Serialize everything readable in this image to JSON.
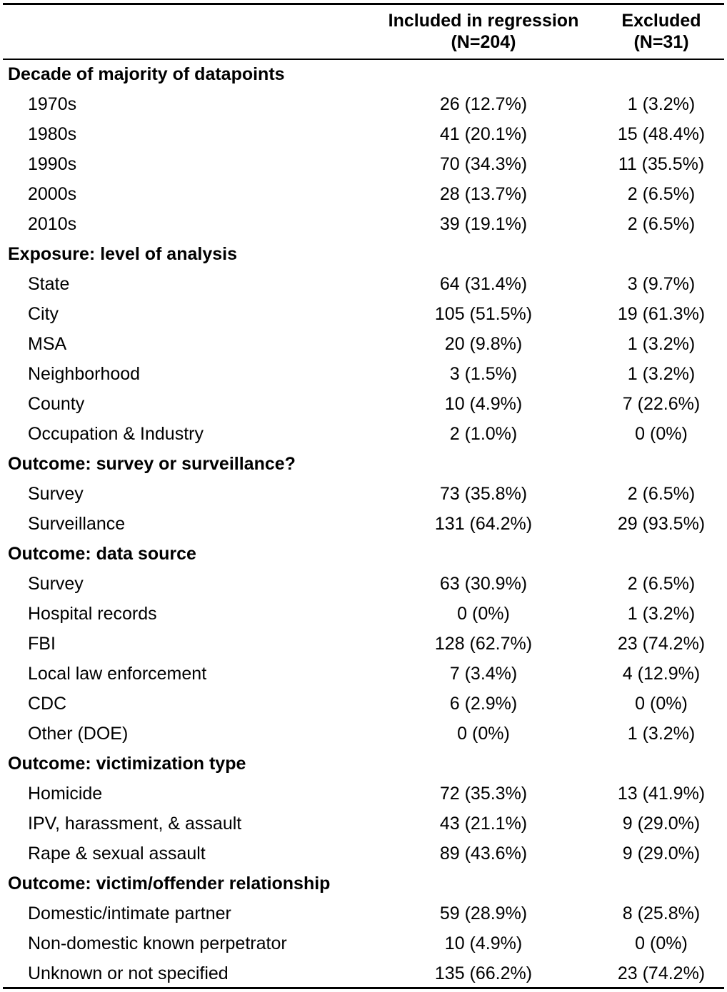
{
  "header": {
    "col1_line1": "Included in regression",
    "col1_line2": "(N=204)",
    "col2_line1": "Excluded",
    "col2_line2": "(N=31)"
  },
  "sections": [
    {
      "title": "Decade of majority of datapoints",
      "rows": [
        {
          "label": "1970s",
          "included": "26 (12.7%)",
          "excluded": "1 (3.2%)"
        },
        {
          "label": "1980s",
          "included": "41 (20.1%)",
          "excluded": "15 (48.4%)"
        },
        {
          "label": "1990s",
          "included": "70 (34.3%)",
          "excluded": "11 (35.5%)"
        },
        {
          "label": "2000s",
          "included": "28 (13.7%)",
          "excluded": "2 (6.5%)"
        },
        {
          "label": "2010s",
          "included": "39 (19.1%)",
          "excluded": "2 (6.5%)"
        }
      ]
    },
    {
      "title": "Exposure: level of analysis",
      "rows": [
        {
          "label": "State",
          "included": "64 (31.4%)",
          "excluded": "3 (9.7%)"
        },
        {
          "label": "City",
          "included": "105 (51.5%)",
          "excluded": "19 (61.3%)"
        },
        {
          "label": "MSA",
          "included": "20 (9.8%)",
          "excluded": "1 (3.2%)"
        },
        {
          "label": "Neighborhood",
          "included": "3 (1.5%)",
          "excluded": "1 (3.2%)"
        },
        {
          "label": "County",
          "included": "10 (4.9%)",
          "excluded": "7 (22.6%)"
        },
        {
          "label": "Occupation & Industry",
          "included": "2 (1.0%)",
          "excluded": "0 (0%)"
        }
      ]
    },
    {
      "title": "Outcome: survey or surveillance?",
      "rows": [
        {
          "label": "Survey",
          "included": "73 (35.8%)",
          "excluded": "2 (6.5%)"
        },
        {
          "label": "Surveillance",
          "included": "131 (64.2%)",
          "excluded": "29 (93.5%)"
        }
      ]
    },
    {
      "title": "Outcome: data source",
      "rows": [
        {
          "label": "Survey",
          "included": "63 (30.9%)",
          "excluded": "2 (6.5%)"
        },
        {
          "label": "Hospital records",
          "included": "0 (0%)",
          "excluded": "1 (3.2%)"
        },
        {
          "label": "FBI",
          "included": "128 (62.7%)",
          "excluded": "23 (74.2%)"
        },
        {
          "label": "Local law enforcement",
          "included": "7 (3.4%)",
          "excluded": "4 (12.9%)"
        },
        {
          "label": "CDC",
          "included": "6 (2.9%)",
          "excluded": "0 (0%)"
        },
        {
          "label": "Other (DOE)",
          "included": "0 (0%)",
          "excluded": "1 (3.2%)"
        }
      ]
    },
    {
      "title": "Outcome: victimization type",
      "rows": [
        {
          "label": "Homicide",
          "included": "72 (35.3%)",
          "excluded": "13 (41.9%)"
        },
        {
          "label": "IPV, harassment, & assault",
          "included": "43 (21.1%)",
          "excluded": "9 (29.0%)"
        },
        {
          "label": "Rape & sexual assault",
          "included": "89 (43.6%)",
          "excluded": "9 (29.0%)"
        }
      ]
    },
    {
      "title": "Outcome: victim/offender relationship",
      "rows": [
        {
          "label": "Domestic/intimate partner",
          "included": "59 (28.9%)",
          "excluded": "8 (25.8%)"
        },
        {
          "label": "Non-domestic known perpetrator",
          "included": "10 (4.9%)",
          "excluded": "0 (0%)"
        },
        {
          "label": "Unknown or not specified",
          "included": "135 (66.2%)",
          "excluded": "23 (74.2%)"
        }
      ]
    }
  ]
}
